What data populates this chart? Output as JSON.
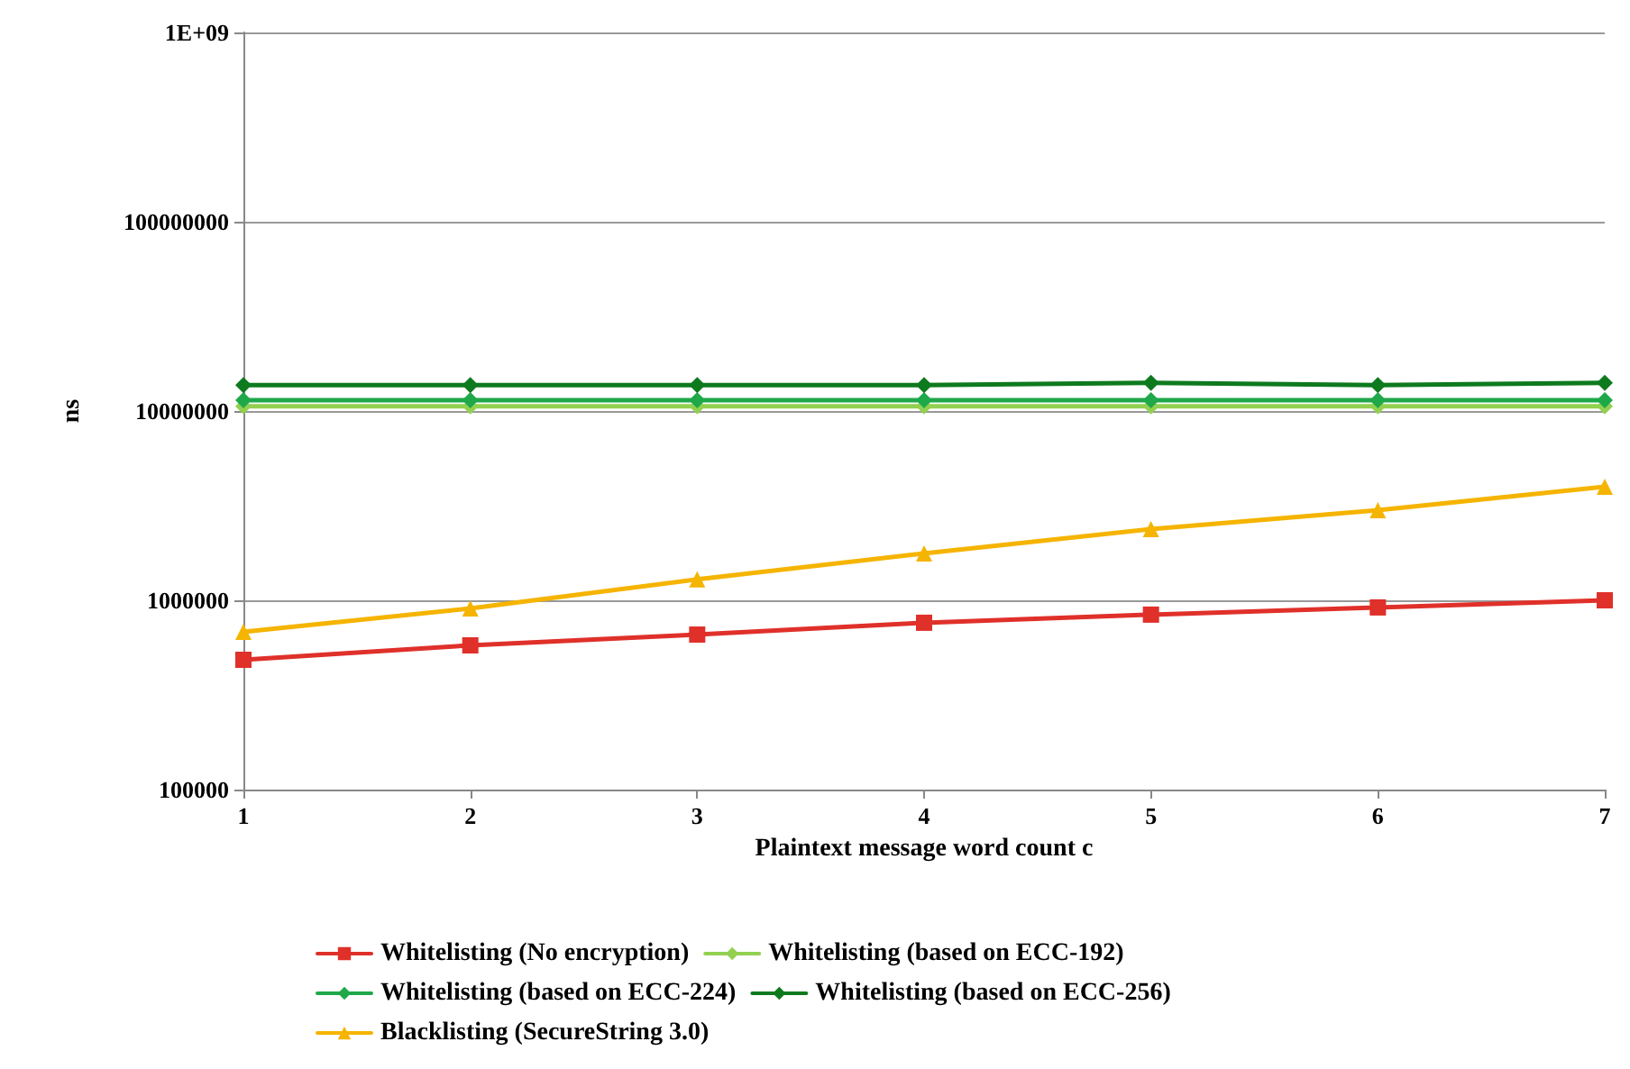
{
  "chart_data": {
    "type": "line",
    "xlabel": "Plaintext message word count c",
    "ylabel": "ns",
    "x": [
      1,
      2,
      3,
      4,
      5,
      6,
      7
    ],
    "xlim": [
      1,
      7
    ],
    "xticks": [
      1,
      2,
      3,
      4,
      5,
      6,
      7
    ],
    "log": "y",
    "ylim": [
      100000,
      1000000000
    ],
    "yticks": [
      100000,
      1000000,
      10000000,
      100000000,
      {
        "value": 1000000000,
        "label": "1E+09"
      }
    ],
    "grid": "y",
    "legend": "bottom",
    "line_style": "solid",
    "series": [
      {
        "name": "Whitelisting (No encryption)",
        "color": "#e0302a",
        "marker": "square",
        "values": [
          485000,
          578000,
          659000,
          761000,
          840000,
          917000,
          1000000
        ]
      },
      {
        "name": "Whitelisting (based on ECC-192)",
        "color": "#92d050",
        "marker": "diamond",
        "values": [
          10600000,
          10600000,
          10600000,
          10600000,
          10600000,
          10600000,
          10600000
        ]
      },
      {
        "name": "Whitelisting (based on ECC-224)",
        "color": "#1fa84a",
        "marker": "diamond",
        "values": [
          11400000,
          11400000,
          11400000,
          11400000,
          11400000,
          11400000,
          11400000
        ]
      },
      {
        "name": "Whitelisting (based on ECC-256)",
        "color": "#0e7a1e",
        "marker": "diamond",
        "values": [
          13700000,
          13700000,
          13700000,
          13700000,
          14100000,
          13700000,
          14100000
        ]
      },
      {
        "name": "Blacklisting (SecureString 3.0)",
        "color": "#f5b400",
        "marker": "triangle",
        "values": [
          681000,
          906000,
          1290000,
          1770000,
          2380000,
          2990000,
          3980000
        ]
      }
    ]
  }
}
